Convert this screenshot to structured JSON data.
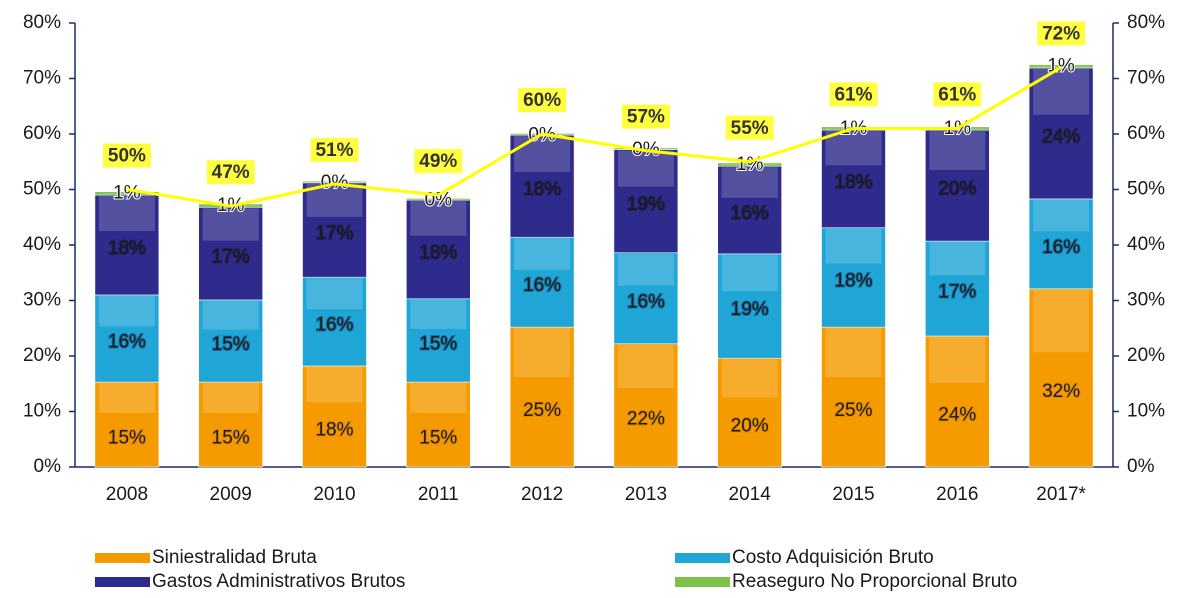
{
  "chart_data": {
    "type": "stacked_bar_line",
    "categories": [
      "2008",
      "2009",
      "2010",
      "2011",
      "2012",
      "2013",
      "2014",
      "2015",
      "2016",
      "2017*"
    ],
    "series": [
      {
        "name": "Siniestralidad Bruta",
        "color": "#f59b00",
        "values": [
          15.3,
          15.3,
          18.2,
          15.3,
          25.2,
          22.2,
          19.6,
          25.2,
          23.6,
          32.1
        ],
        "value_labels": [
          "15%",
          "15%",
          "18%",
          "15%",
          "25%",
          "22%",
          "20%",
          "25%",
          "24%",
          "32%"
        ]
      },
      {
        "name": "Costo Adquisición Bruto",
        "color": "#1fa5d6",
        "values": [
          15.7,
          14.8,
          16.0,
          15.0,
          16.2,
          16.4,
          18.8,
          17.9,
          17.1,
          16.2
        ],
        "value_labels": [
          "16%",
          "15%",
          "16%",
          "15%",
          "16%",
          "16%",
          "19%",
          "18%",
          "17%",
          "16%"
        ]
      },
      {
        "name": "Gastos Administrativos Brutos",
        "color": "#2e2b8c",
        "values": [
          18.0,
          16.7,
          17.0,
          17.8,
          18.4,
          18.6,
          15.8,
          17.6,
          20.0,
          23.6
        ],
        "value_labels": [
          "18%",
          "17%",
          "17%",
          "18%",
          "18%",
          "19%",
          "16%",
          "18%",
          "20%",
          "24%"
        ]
      },
      {
        "name": "Reaseguro No Proporcional Bruto",
        "color": "#7cc349",
        "values": [
          0.6,
          0.6,
          0.3,
          0.3,
          0.3,
          0.3,
          0.6,
          0.6,
          0.6,
          0.6
        ],
        "value_labels": [
          "1%",
          "1%",
          "0%",
          "0%",
          "0%",
          "0%",
          "1%",
          "1%",
          "1%",
          "1%"
        ]
      }
    ],
    "total": {
      "color": "#ffff00",
      "values": [
        50,
        47,
        51,
        49,
        60,
        57,
        55,
        61,
        61,
        72
      ],
      "value_labels": [
        "50%",
        "47%",
        "51%",
        "49%",
        "60%",
        "57%",
        "55%",
        "61%",
        "61%",
        "72%"
      ]
    },
    "ylim": [
      0,
      80
    ],
    "yticks": [
      {
        "value": 0,
        "label": "0%"
      },
      {
        "value": 10,
        "label": "10%"
      },
      {
        "value": 20,
        "label": "20%"
      },
      {
        "value": 30,
        "label": "30%"
      },
      {
        "value": 40,
        "label": "40%"
      },
      {
        "value": 50,
        "label": "50%"
      },
      {
        "value": 60,
        "label": "60%"
      },
      {
        "value": 70,
        "label": "70%"
      },
      {
        "value": 80,
        "label": "80%"
      }
    ],
    "y2lim": [
      0,
      80
    ],
    "y2ticks": [
      {
        "value": 0,
        "label": "0%"
      },
      {
        "value": 10,
        "label": "10%"
      },
      {
        "value": 20,
        "label": "20%"
      },
      {
        "value": 30,
        "label": "30%"
      },
      {
        "value": 40,
        "label": "40%"
      },
      {
        "value": 50,
        "label": "50%"
      },
      {
        "value": 60,
        "label": "60%"
      },
      {
        "value": 70,
        "label": "70%"
      },
      {
        "value": 80,
        "label": "80%"
      }
    ]
  }
}
